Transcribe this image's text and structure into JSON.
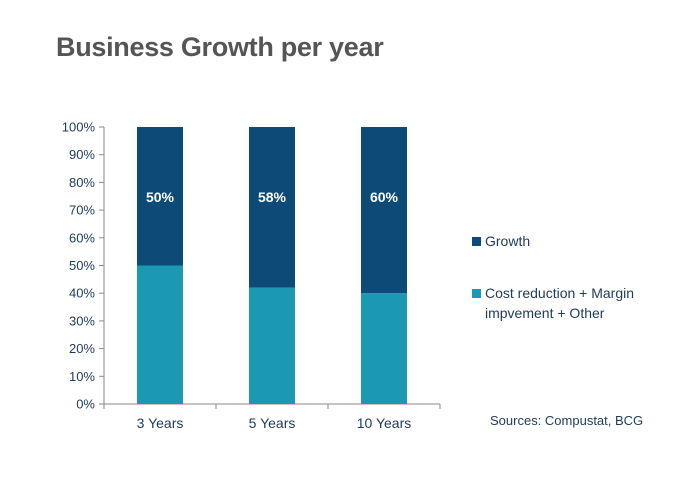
{
  "colors": {
    "growth": "#0e4a78",
    "cost": "#1b98b3",
    "bar_label": "#ffffff",
    "axis_text": "#1f3b5a",
    "axis_line": "#8a8a8a"
  },
  "chart_data": {
    "type": "bar",
    "stacked": true,
    "title": "Business Growth per year",
    "xlabel": "",
    "ylabel": "",
    "categories": [
      "3 Years",
      "5 Years",
      "10 Years"
    ],
    "series": [
      {
        "name": "Cost reduction + Margin impvement + Other",
        "values": [
          50,
          42,
          40
        ],
        "color_key": "cost"
      },
      {
        "name": "Growth",
        "values": [
          50,
          58,
          60
        ],
        "color_key": "growth",
        "labels": [
          "50%",
          "58%",
          "60%"
        ]
      }
    ],
    "ylim": [
      0,
      100
    ],
    "yticks": [
      "0%",
      "10%",
      "20%",
      "30%",
      "40%",
      "50%",
      "60%",
      "70%",
      "80%",
      "90%",
      "100%"
    ],
    "grid": false,
    "legend": {
      "placement": "right",
      "entries": [
        "Growth",
        "Cost reduction + Margin impvement + Other"
      ]
    },
    "source": "Sources: Compustat, BCG"
  }
}
